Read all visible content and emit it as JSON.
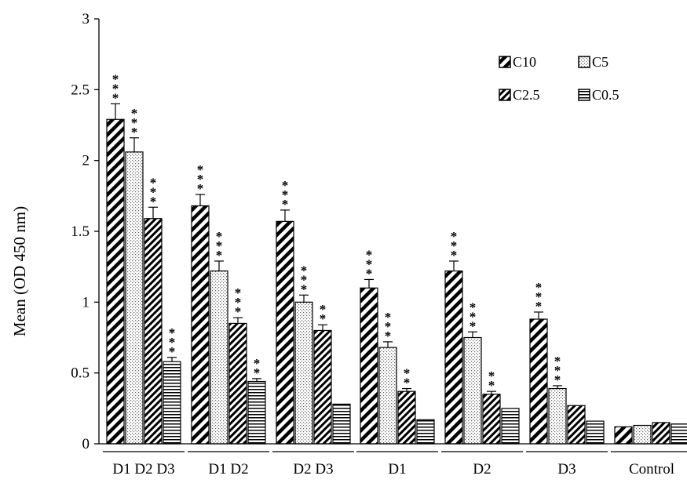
{
  "chart_data": {
    "type": "bar",
    "title": "",
    "xlabel": "",
    "ylabel": "Mean (OD 450 nm)",
    "ylim": [
      0,
      3
    ],
    "yticks": [
      0,
      0.5,
      1,
      1.5,
      2,
      2.5,
      3
    ],
    "ytick_labels": [
      "0",
      "0.5",
      "1",
      "1.5",
      "2",
      "2.5",
      "3"
    ],
    "grid": false,
    "legend_position": "top-right",
    "categories": [
      "D1 D2 D3",
      "D1 D2",
      "D2 D3",
      "D1",
      "D2",
      "D3",
      "Control"
    ],
    "series": [
      {
        "name": "C10",
        "pattern": "diag-wide",
        "values": [
          2.29,
          1.68,
          1.57,
          1.1,
          1.22,
          0.88,
          0.12
        ],
        "errors": [
          0.11,
          0.08,
          0.08,
          0.06,
          0.07,
          0.05,
          0.01
        ],
        "significance": [
          "***",
          "***",
          "***",
          "***",
          "***",
          "***",
          ""
        ]
      },
      {
        "name": "C5",
        "pattern": "dotted",
        "values": [
          2.06,
          1.22,
          1.0,
          0.68,
          0.75,
          0.39,
          0.13
        ],
        "errors": [
          0.1,
          0.07,
          0.05,
          0.04,
          0.04,
          0.02,
          0.01
        ],
        "significance": [
          "***",
          "***",
          "***",
          "***",
          "***",
          "***",
          ""
        ]
      },
      {
        "name": "C2.5",
        "pattern": "diag-narrow",
        "values": [
          1.59,
          0.85,
          0.8,
          0.37,
          0.35,
          0.27,
          0.15
        ],
        "errors": [
          0.08,
          0.04,
          0.04,
          0.02,
          0.02,
          0.01,
          0.01
        ],
        "significance": [
          "***",
          "***",
          "**",
          "**",
          "**",
          "",
          ""
        ]
      },
      {
        "name": "C0.5",
        "pattern": "horizontal",
        "values": [
          0.58,
          0.44,
          0.28,
          0.17,
          0.25,
          0.16,
          0.14
        ],
        "errors": [
          0.03,
          0.02,
          0.01,
          0.01,
          0.01,
          0.01,
          0.01
        ],
        "significance": [
          "***",
          "**",
          "",
          "",
          "",
          "",
          ""
        ]
      }
    ]
  }
}
